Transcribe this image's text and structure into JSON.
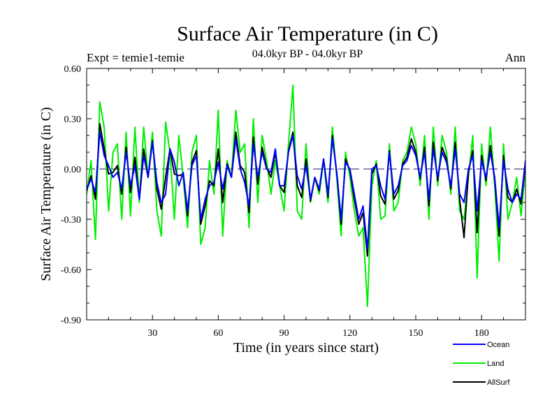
{
  "chart_data": {
    "type": "line",
    "title": "Surface Air Temperature (in C)",
    "subtitle_left": "Expt = temie1-temie",
    "subtitle_center": "04.0kyr BP - 04.0kyr BP",
    "subtitle_right": "Ann",
    "xlabel": "Time (in years since start)",
    "ylabel": "Surface Air Temperature (in C)",
    "xlim": [
      0,
      200
    ],
    "ylim": [
      -0.9,
      0.6
    ],
    "xticks": [
      30,
      60,
      90,
      120,
      150,
      180
    ],
    "xtick_labels": [
      "30",
      "60",
      "90",
      "120",
      "150",
      "180"
    ],
    "yticks": [
      0.6,
      0.3,
      0.0,
      -0.3,
      -0.6,
      -0.9
    ],
    "ytick_labels": [
      "0.60",
      "0.30",
      "0.00",
      "-0.30",
      "-0.60",
      "-0.90"
    ],
    "reference_line": 0.0,
    "grid": false,
    "legend_position": "bottom-right",
    "series": [
      {
        "name": "Ocean",
        "color": "#0000ff",
        "width": 2,
        "x": [
          0,
          2,
          4,
          6,
          8,
          10,
          12,
          14,
          16,
          18,
          20,
          22,
          24,
          26,
          28,
          30,
          32,
          34,
          36,
          38,
          40,
          42,
          44,
          46,
          48,
          50,
          52,
          54,
          56,
          58,
          60,
          62,
          64,
          66,
          68,
          70,
          72,
          74,
          76,
          78,
          80,
          82,
          84,
          86,
          88,
          90,
          92,
          94,
          96,
          98,
          100,
          102,
          104,
          106,
          108,
          110,
          112,
          114,
          116,
          118,
          120,
          122,
          124,
          126,
          128,
          130,
          132,
          134,
          136,
          138,
          140,
          142,
          144,
          146,
          148,
          150,
          152,
          154,
          156,
          158,
          160,
          162,
          164,
          166,
          168,
          170,
          172,
          174,
          176,
          178,
          180,
          182,
          184,
          186,
          188,
          190,
          192,
          194,
          196,
          198,
          200
        ],
        "values": [
          -0.12,
          -0.06,
          -0.14,
          0.22,
          0.08,
          0.02,
          -0.05,
          -0.02,
          -0.12,
          0.1,
          -0.1,
          0.02,
          -0.18,
          0.08,
          -0.05,
          0.16,
          -0.08,
          -0.2,
          -0.15,
          0.12,
          0.04,
          -0.1,
          -0.02,
          -0.25,
          0.02,
          0.08,
          -0.3,
          -0.18,
          -0.1,
          -0.08,
          0.04,
          -0.12,
          0.02,
          -0.05,
          0.18,
          0.0,
          -0.08,
          -0.22,
          0.15,
          -0.05,
          0.1,
          0.0,
          -0.02,
          0.12,
          -0.1,
          -0.1,
          0.1,
          0.2,
          -0.04,
          -0.12,
          0.02,
          -0.18,
          -0.05,
          -0.12,
          0.06,
          -0.15,
          0.18,
          -0.02,
          -0.3,
          0.04,
          0.0,
          -0.15,
          -0.3,
          -0.22,
          -0.48,
          0.0,
          0.02,
          -0.1,
          -0.18,
          0.1,
          -0.15,
          -0.1,
          0.02,
          0.05,
          0.14,
          0.08,
          -0.05,
          0.1,
          -0.18,
          0.12,
          -0.05,
          0.1,
          0.04,
          -0.1,
          0.12,
          -0.15,
          -0.2,
          0.0,
          0.08,
          -0.25,
          0.05,
          -0.05,
          0.1,
          -0.05,
          -0.35,
          0.05,
          -0.12,
          -0.2,
          -0.15,
          -0.18,
          0.05
        ]
      },
      {
        "name": "Land",
        "color": "#00ee00",
        "width": 2,
        "x": [
          0,
          2,
          4,
          6,
          8,
          10,
          12,
          14,
          16,
          18,
          20,
          22,
          24,
          26,
          28,
          30,
          32,
          34,
          36,
          38,
          40,
          42,
          44,
          46,
          48,
          50,
          52,
          54,
          56,
          58,
          60,
          62,
          64,
          66,
          68,
          70,
          72,
          74,
          76,
          78,
          80,
          82,
          84,
          86,
          88,
          90,
          92,
          94,
          96,
          98,
          100,
          102,
          104,
          106,
          108,
          110,
          112,
          114,
          116,
          118,
          120,
          122,
          124,
          126,
          128,
          130,
          132,
          134,
          136,
          138,
          140,
          142,
          144,
          146,
          148,
          150,
          152,
          154,
          156,
          158,
          160,
          162,
          164,
          166,
          168,
          170,
          172,
          174,
          176,
          178,
          180,
          182,
          184,
          186,
          188,
          190,
          192,
          194,
          196,
          198,
          200
        ],
        "values": [
          -0.15,
          0.05,
          -0.42,
          0.4,
          0.25,
          -0.25,
          0.1,
          0.15,
          -0.3,
          0.22,
          -0.28,
          0.25,
          -0.2,
          0.25,
          -0.05,
          0.22,
          -0.25,
          -0.4,
          0.28,
          0.1,
          -0.3,
          0.2,
          -0.05,
          -0.35,
          0.1,
          0.2,
          -0.45,
          -0.35,
          0.05,
          -0.15,
          0.35,
          -0.4,
          0.05,
          -0.05,
          0.35,
          0.1,
          0.15,
          -0.35,
          0.3,
          -0.2,
          0.2,
          0.05,
          -0.15,
          0.05,
          -0.1,
          -0.25,
          0.15,
          0.5,
          -0.25,
          -0.3,
          0.15,
          -0.2,
          -0.05,
          -0.15,
          0.05,
          -0.2,
          0.25,
          -0.05,
          -0.4,
          0.1,
          -0.05,
          -0.25,
          -0.4,
          -0.35,
          -0.82,
          -0.1,
          0.05,
          -0.3,
          -0.28,
          0.15,
          -0.25,
          -0.2,
          0.05,
          0.1,
          0.25,
          0.15,
          -0.1,
          0.2,
          -0.3,
          0.25,
          -0.1,
          0.2,
          0.1,
          -0.15,
          0.25,
          -0.25,
          -0.3,
          -0.05,
          0.2,
          -0.65,
          0.15,
          -0.1,
          0.25,
          -0.1,
          -0.55,
          0.15,
          -0.3,
          -0.2,
          -0.05,
          -0.28,
          0.0
        ]
      },
      {
        "name": "AllSurf",
        "color": "#000000",
        "width": 2,
        "x": [
          0,
          2,
          4,
          6,
          8,
          10,
          12,
          14,
          16,
          18,
          20,
          22,
          24,
          26,
          28,
          30,
          32,
          34,
          36,
          38,
          40,
          42,
          44,
          46,
          48,
          50,
          52,
          54,
          56,
          58,
          60,
          62,
          64,
          66,
          68,
          70,
          72,
          74,
          76,
          78,
          80,
          82,
          84,
          86,
          88,
          90,
          92,
          94,
          96,
          98,
          100,
          102,
          104,
          106,
          108,
          110,
          112,
          114,
          116,
          118,
          120,
          122,
          124,
          126,
          128,
          130,
          132,
          134,
          136,
          138,
          140,
          142,
          144,
          146,
          148,
          150,
          152,
          154,
          156,
          158,
          160,
          162,
          164,
          166,
          168,
          170,
          172,
          174,
          176,
          178,
          180,
          182,
          184,
          186,
          188,
          190,
          192,
          194,
          196,
          198,
          200
        ],
        "values": [
          -0.13,
          -0.04,
          -0.18,
          0.27,
          0.12,
          -0.03,
          -0.02,
          0.02,
          -0.15,
          0.13,
          -0.14,
          0.07,
          -0.18,
          0.12,
          -0.05,
          0.17,
          -0.12,
          -0.24,
          -0.05,
          0.12,
          -0.03,
          -0.04,
          -0.03,
          -0.28,
          0.04,
          0.11,
          -0.33,
          -0.22,
          -0.07,
          -0.1,
          0.12,
          -0.2,
          0.03,
          -0.05,
          0.22,
          0.02,
          -0.02,
          -0.26,
          0.19,
          -0.09,
          0.13,
          0.01,
          -0.05,
          0.1,
          -0.1,
          -0.14,
          0.11,
          0.22,
          -0.1,
          -0.17,
          0.06,
          -0.19,
          -0.05,
          -0.13,
          0.06,
          -0.17,
          0.2,
          -0.03,
          -0.33,
          0.06,
          -0.01,
          -0.18,
          -0.33,
          -0.26,
          -0.52,
          -0.03,
          0.03,
          -0.16,
          -0.21,
          0.11,
          -0.18,
          -0.13,
          0.03,
          0.07,
          0.18,
          0.1,
          -0.06,
          0.13,
          -0.22,
          0.16,
          -0.07,
          0.13,
          0.06,
          -0.12,
          0.16,
          -0.18,
          -0.41,
          -0.02,
          0.11,
          -0.38,
          0.08,
          -0.07,
          0.14,
          -0.07,
          -0.4,
          0.08,
          -0.17,
          -0.2,
          -0.12,
          -0.21,
          0.04
        ]
      }
    ]
  }
}
